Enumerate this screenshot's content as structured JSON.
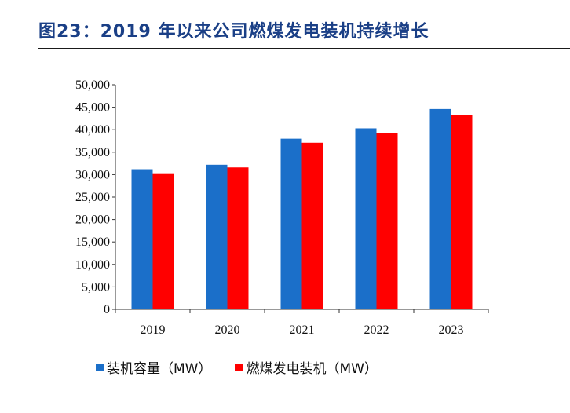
{
  "figure": {
    "title": "图23：2019 年以来公司燃煤发电装机持续增长"
  },
  "colors": {
    "title": "#1a3f86",
    "series_blue": "#1b6fc9",
    "series_red": "#ff0000"
  },
  "chart_data": {
    "type": "bar",
    "categories": [
      "2019",
      "2020",
      "2021",
      "2022",
      "2023"
    ],
    "series": [
      {
        "name": "装机容量（MW）",
        "values": [
          31200,
          32200,
          38000,
          40300,
          44600
        ]
      },
      {
        "name": "燃煤发电装机（MW）",
        "values": [
          30300,
          31600,
          37100,
          39300,
          43200
        ]
      }
    ],
    "ylim": [
      0,
      50000
    ],
    "yticks": [
      "0",
      "5,000",
      "10,000",
      "15,000",
      "20,000",
      "25,000",
      "30,000",
      "35,000",
      "40,000",
      "45,000",
      "50,000"
    ],
    "grid": false,
    "legend": "bottom"
  }
}
